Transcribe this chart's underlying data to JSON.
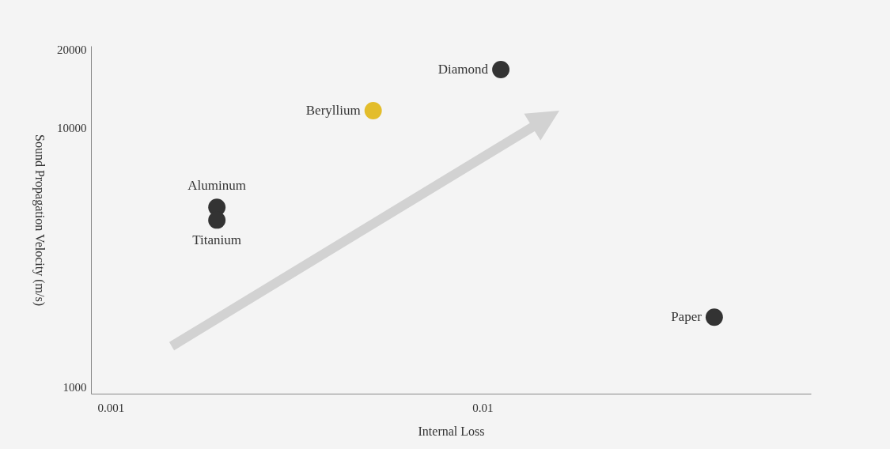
{
  "chart_data": {
    "type": "scatter",
    "xlabel": "Internal Loss",
    "ylabel": "Sound Propagation Velocity (m/s)",
    "log": "xy",
    "grid": false,
    "legend": false,
    "marker": "circle",
    "xlim": [
      0.000885,
      0.0764
    ],
    "xticks": [
      0.001,
      0.01
    ],
    "ylim": [
      945,
      20600
    ],
    "yticks": [
      1000,
      10000,
      20000
    ],
    "series": [
      {
        "name": "Diamond",
        "color": "#333333",
        "x": [
          0.0112
        ],
        "values": [
          16700
        ]
      },
      {
        "name": "Beryllium",
        "color": "#e3bd2b",
        "x": [
          0.00508
        ],
        "values": [
          11600
        ]
      },
      {
        "name": "Aluminum",
        "color": "#333333",
        "x": [
          0.00193
        ],
        "values": [
          4930
        ]
      },
      {
        "name": "Titanium",
        "color": "#333333",
        "x": [
          0.00193
        ],
        "values": [
          4400
        ]
      },
      {
        "name": "Paper",
        "color": "#333333",
        "x": [
          0.042
        ],
        "values": [
          1860
        ]
      }
    ]
  }
}
